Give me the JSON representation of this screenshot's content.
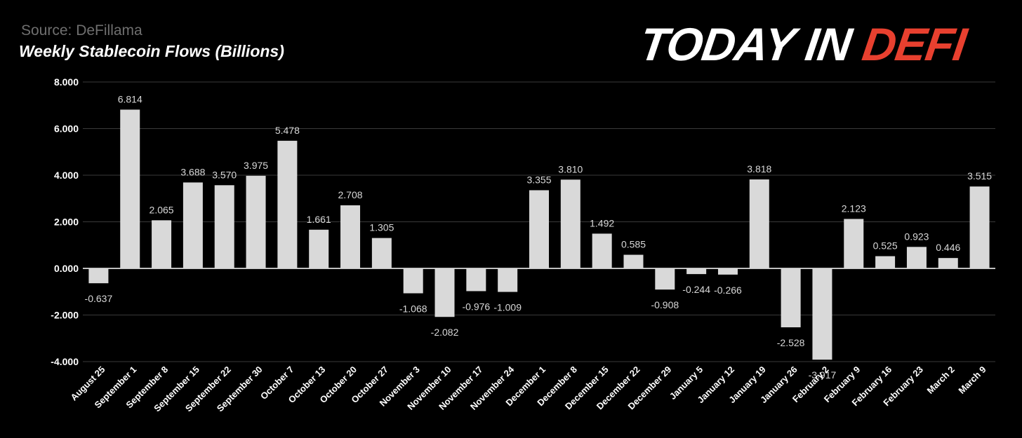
{
  "header": {
    "source": "Source: DeFillama",
    "title": "Weekly Stablecoin Flows (Billions)",
    "logo_main": "TODAY IN ",
    "logo_accent": "DEFI"
  },
  "colors": {
    "background": "#000000",
    "bar": "#d9d9d9",
    "grid": "#3a3a3a",
    "zero_line": "#ffffff",
    "logo_accent": "#e8402f"
  },
  "chart_data": {
    "type": "bar",
    "title": "Weekly Stablecoin Flows (Billions)",
    "xlabel": "",
    "ylabel": "",
    "ylim": [
      -4,
      8
    ],
    "yticks": [
      8,
      6,
      4,
      2,
      0,
      -2,
      -4
    ],
    "ytick_labels": [
      "8.000",
      "6.000",
      "4.000",
      "2.000",
      "0.000",
      "-2.000",
      "-4.000"
    ],
    "grid": true,
    "legend": "none",
    "categories": [
      "August 25",
      "September 1",
      "September 8",
      "September 15",
      "September 22",
      "September 30",
      "October 7",
      "October 13",
      "October 20",
      "October 27",
      "November 3",
      "November 10",
      "November 17",
      "November 24",
      "December 1",
      "December 8",
      "December 15",
      "December 22",
      "December 29",
      "January 5",
      "January 12",
      "January 19",
      "January 26",
      "February 2",
      "February 9",
      "February 16",
      "February 23",
      "March 2",
      "March 9"
    ],
    "values": [
      -0.637,
      6.814,
      2.065,
      3.688,
      3.57,
      3.975,
      5.478,
      1.661,
      2.708,
      1.305,
      -1.068,
      -2.082,
      -0.976,
      -1.009,
      3.355,
      3.81,
      1.492,
      0.585,
      -0.908,
      -0.244,
      -0.266,
      3.818,
      -2.528,
      -3.917,
      2.123,
      0.525,
      0.923,
      0.446,
      3.515
    ],
    "value_labels": [
      "-0.637",
      "6.814",
      "2.065",
      "3.688",
      "3.570",
      "3.975",
      "5.478",
      "1.661",
      "2.708",
      "1.305",
      "-1.068",
      "-2.082",
      "-0.976",
      "-1.009",
      "3.355",
      "3.810",
      "1.492",
      "0.585",
      "-0.908",
      "-0.244",
      "-0.266",
      "3.818",
      "-2.528",
      "-3.917",
      "2.123",
      "0.525",
      "0.923",
      "0.446",
      "3.515"
    ]
  }
}
